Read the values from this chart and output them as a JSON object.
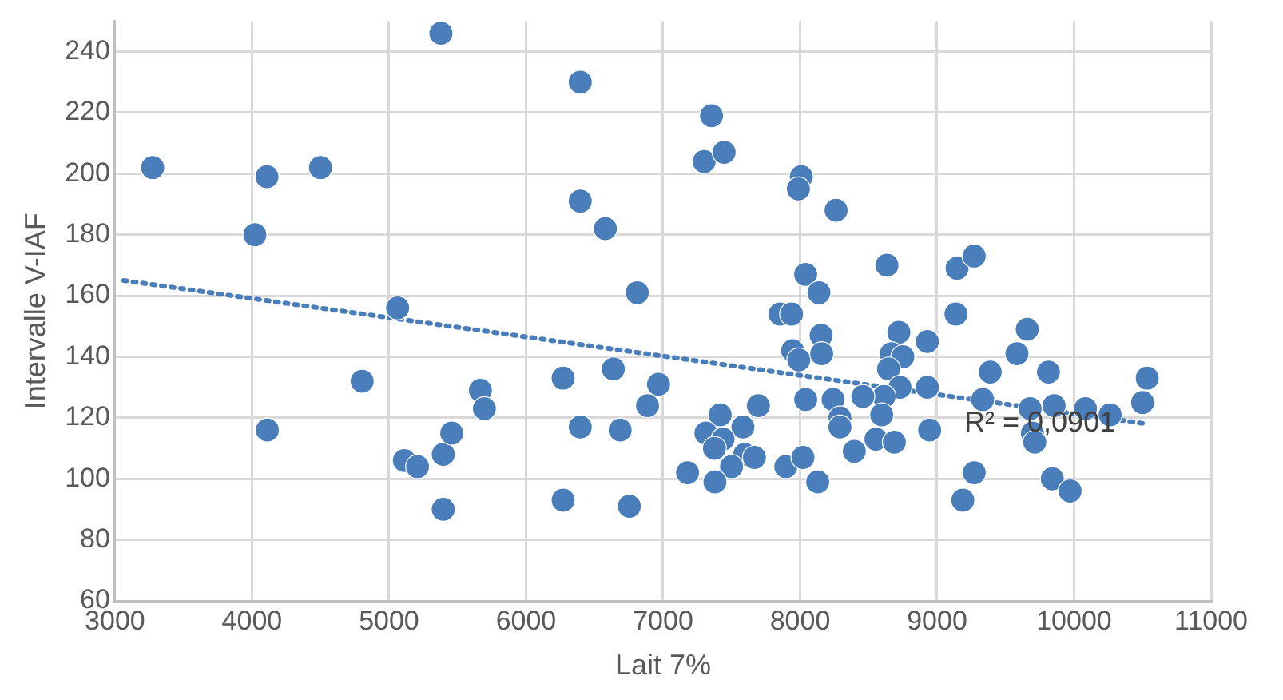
{
  "chart_data": {
    "type": "scatter",
    "xlabel": "Lait 7%",
    "ylabel": "Intervalle V-IAF",
    "xlim": [
      3000,
      11000
    ],
    "xticks": [
      3000,
      4000,
      5000,
      6000,
      7000,
      8000,
      9000,
      10000,
      11000
    ],
    "ylim": [
      60,
      250
    ],
    "yticks": [
      60,
      80,
      100,
      120,
      140,
      160,
      180,
      200,
      220,
      240
    ],
    "grid": true,
    "legend": false,
    "marker": "circle",
    "series": [
      {
        "color": "#4a7ebb",
        "x": [
          3275,
          4021,
          4109,
          4500,
          5379,
          6396,
          6396,
          6579,
          6812,
          5063,
          4804,
          4112,
          5112,
          5208,
          5396,
          5458,
          5396,
          5667,
          5696,
          6271,
          6637,
          6967,
          6887,
          6396,
          6687,
          6271,
          6754,
          7179,
          7354,
          7300,
          7446,
          8009,
          7988,
          8263,
          8634,
          9146,
          9271,
          8041,
          8138,
          7854,
          7938,
          9138,
          8154,
          8721,
          8929,
          9658,
          9583,
          7946,
          7991,
          8158,
          8666,
          8750,
          8646,
          9388,
          9813,
          10534,
          10500,
          10263,
          10083,
          9854,
          9679,
          9696,
          9713,
          9333,
          8929,
          8729,
          8613,
          8458,
          8241,
          8041,
          8291,
          8291,
          8596,
          8946,
          8396,
          8554,
          8688,
          7417,
          7583,
          7696,
          7313,
          7438,
          7375,
          7596,
          7667,
          7500,
          7379,
          7896,
          8021,
          8129,
          9271,
          9188,
          9841,
          9971
        ],
        "values": [
          202,
          180,
          199,
          202,
          246,
          230,
          191,
          182,
          161,
          156,
          132,
          116,
          106,
          104,
          108,
          115,
          90,
          129,
          123,
          133,
          136,
          131,
          124,
          117,
          116,
          93,
          91,
          102,
          219,
          204,
          207,
          199,
          195,
          188,
          170,
          169,
          173,
          167,
          161,
          154,
          154,
          154,
          147,
          148,
          145,
          149,
          141,
          142,
          139,
          141,
          141,
          140,
          136,
          135,
          135,
          133,
          125,
          121,
          123,
          124,
          123,
          115,
          112,
          126,
          130,
          130,
          127,
          127,
          126,
          126,
          120,
          117,
          121,
          116,
          109,
          113,
          112,
          121,
          117,
          124,
          115,
          113,
          110,
          108,
          107,
          104,
          99,
          104,
          107,
          99,
          102,
          93,
          100,
          96
        ]
      },
      {
        "type": "line",
        "color": "#4a7ebb",
        "line_style": "dotted",
        "marker": "none",
        "x": [
          3062,
          10534
        ],
        "values": [
          165,
          118
        ]
      }
    ],
    "annotations": [
      {
        "text": "R² = 0,0901",
        "x": 9750,
        "y": 118
      }
    ]
  }
}
